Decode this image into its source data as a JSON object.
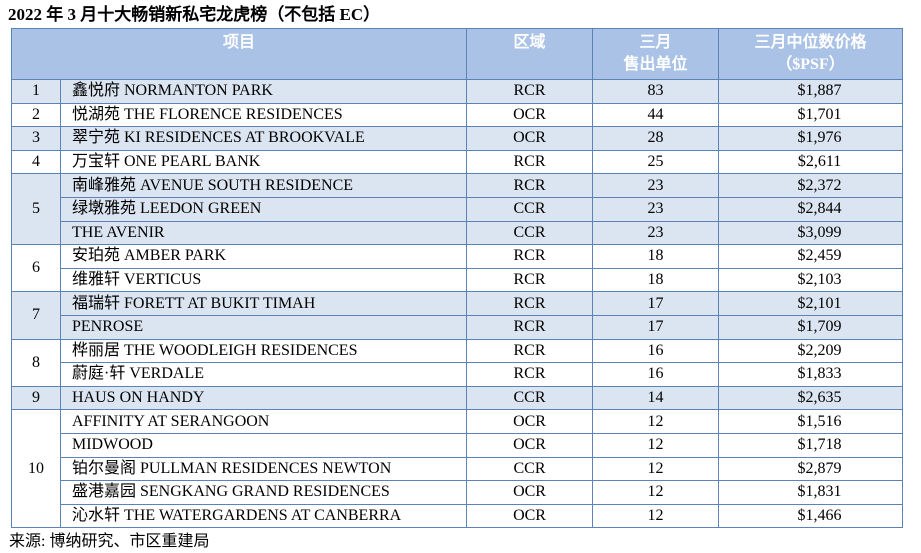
{
  "title": "2022 年 3 月十大畅销新私宅龙虎榜（不包括 EC）",
  "header": {
    "project": "项目",
    "region": "区域",
    "units_line1": "三月",
    "units_line2": "售出单位",
    "price_line1": "三月中位数价格",
    "price_line2": "（$PSF）"
  },
  "groups": [
    {
      "rank": "1",
      "shade": true,
      "rows": [
        {
          "name": "鑫悦府 NORMANTON PARK",
          "region": "RCR",
          "units": "83",
          "price": "$1,887"
        }
      ]
    },
    {
      "rank": "2",
      "shade": false,
      "rows": [
        {
          "name": "悦湖苑 THE FLORENCE RESIDENCES",
          "region": "OCR",
          "units": "44",
          "price": "$1,701"
        }
      ]
    },
    {
      "rank": "3",
      "shade": true,
      "rows": [
        {
          "name": "翠宁苑 KI RESIDENCES AT BROOKVALE",
          "region": "OCR",
          "units": "28",
          "price": "$1,976"
        }
      ]
    },
    {
      "rank": "4",
      "shade": false,
      "rows": [
        {
          "name": "万宝轩 ONE PEARL BANK",
          "region": "RCR",
          "units": "25",
          "price": "$2,611"
        }
      ]
    },
    {
      "rank": "5",
      "shade": true,
      "rows": [
        {
          "name": "南峰雅苑 AVENUE SOUTH RESIDENCE",
          "region": "RCR",
          "units": "23",
          "price": "$2,372"
        },
        {
          "name": "绿墩雅苑 LEEDON GREEN",
          "region": "CCR",
          "units": "23",
          "price": "$2,844"
        },
        {
          "name": "THE AVENIR",
          "region": "CCR",
          "units": "23",
          "price": "$3,099"
        }
      ]
    },
    {
      "rank": "6",
      "shade": false,
      "rows": [
        {
          "name": "安珀苑 AMBER PARK",
          "region": "RCR",
          "units": "18",
          "price": "$2,459"
        },
        {
          "name": "维雅轩 VERTICUS",
          "region": "RCR",
          "units": "18",
          "price": "$2,103"
        }
      ]
    },
    {
      "rank": "7",
      "shade": true,
      "rows": [
        {
          "name": "福瑞轩 FORETT AT BUKIT TIMAH",
          "region": "RCR",
          "units": "17",
          "price": "$2,101"
        },
        {
          "name": "PENROSE",
          "region": "RCR",
          "units": "17",
          "price": "$1,709"
        }
      ]
    },
    {
      "rank": "8",
      "shade": false,
      "rows": [
        {
          "name": "桦丽居 THE WOODLEIGH RESIDENCES",
          "region": "RCR",
          "units": "16",
          "price": "$2,209"
        },
        {
          "name": "蔚庭·轩 VERDALE",
          "region": "RCR",
          "units": "16",
          "price": "$1,833"
        }
      ]
    },
    {
      "rank": "9",
      "shade": true,
      "rows": [
        {
          "name": "HAUS ON HANDY",
          "region": "CCR",
          "units": "14",
          "price": "$2,635"
        }
      ]
    },
    {
      "rank": "10",
      "shade": false,
      "rows": [
        {
          "name": "AFFINITY AT SERANGOON",
          "region": "OCR",
          "units": "12",
          "price": "$1,516"
        },
        {
          "name": "MIDWOOD",
          "region": "OCR",
          "units": "12",
          "price": "$1,718"
        },
        {
          "name": "铂尔曼阁 PULLMAN RESIDENCES NEWTON",
          "region": "CCR",
          "units": "12",
          "price": "$2,879"
        },
        {
          "name": "盛港嘉园 SENGKANG GRAND RESIDENCES",
          "region": "OCR",
          "units": "12",
          "price": "$1,831"
        },
        {
          "name": "沁水轩 THE WATERGARDENS AT CANBERRA",
          "region": "OCR",
          "units": "12",
          "price": "$1,466"
        }
      ]
    }
  ],
  "source": "来源: 博纳研究、市区重建局",
  "colors": {
    "header_bg": "#a9c2e6",
    "shade_bg": "#dbe5f1",
    "border": "#5b83b7"
  }
}
